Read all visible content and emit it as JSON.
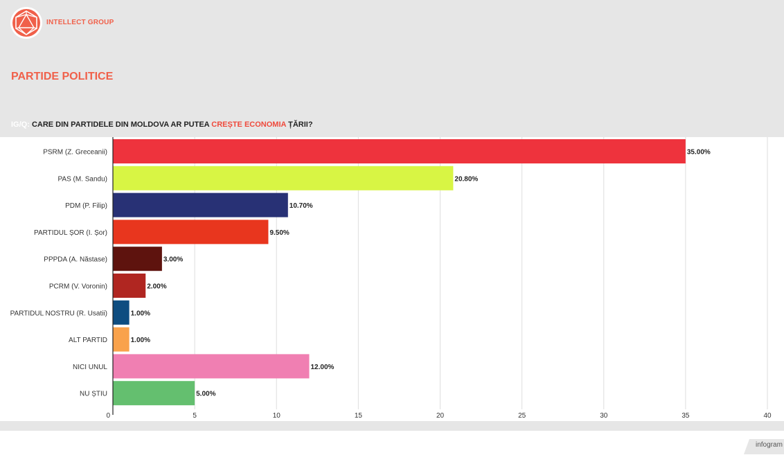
{
  "header": {
    "brand": "INTELLECT GROUP",
    "section_title": "PARTIDE POLITICE",
    "question": {
      "prefix": "IG/Q: ",
      "part1": "CARE DIN PARTIDELE DIN  MOLDOVA AR PUTEA ",
      "highlight": "CREȘTE ECONOMIA",
      "part2": " ȚĂRII?"
    }
  },
  "colors": {
    "brand": "#f0604a",
    "band": "#e6e6e6",
    "highlight": "#ef4a3c"
  },
  "chart_data": {
    "type": "bar",
    "orientation": "horizontal",
    "categories": [
      "PSRM (Z. Greceanii)",
      "PAS (M. Sandu)",
      "PDM (P. Filip)",
      "PARTIDUL ȘOR (I. Șor)",
      "PPPDA (A. Năstase)",
      "PCRM (V. Voronin)",
      "PARTIDUL NOSTRU (R. Usatii)",
      "ALT PARTID",
      "NICI UNUL",
      "NU ȘTIU"
    ],
    "values": [
      35,
      20.8,
      10.7,
      9.5,
      3,
      2,
      1,
      1,
      12,
      5
    ],
    "value_labels": [
      "35.00%",
      "20.80%",
      "10.70%",
      "9.50%",
      "3.00%",
      "2.00%",
      "1.00%",
      "1.00%",
      "12.00%",
      "5.00%"
    ],
    "bar_colors": [
      "#ee333d",
      "#d8f544",
      "#283175",
      "#e8361e",
      "#5e130e",
      "#b02621",
      "#0e4d80",
      "#f9a24b",
      "#f07fb2",
      "#64bf6f"
    ],
    "xticks": [
      "0",
      "5",
      "10",
      "15",
      "20",
      "25",
      "30",
      "35",
      "40"
    ],
    "xlim": [
      0,
      40
    ],
    "grid": true
  },
  "footer": {
    "brand": "infogram"
  }
}
